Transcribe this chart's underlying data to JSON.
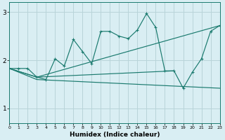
{
  "title": "",
  "xlabel": "Humidex (Indice chaleur)",
  "xlim": [
    0,
    23
  ],
  "ylim": [
    0.7,
    3.2
  ],
  "yticks": [
    1,
    2,
    3
  ],
  "xticks": [
    0,
    1,
    2,
    3,
    4,
    5,
    6,
    7,
    8,
    9,
    10,
    11,
    12,
    13,
    14,
    15,
    16,
    17,
    18,
    19,
    20,
    21,
    22,
    23
  ],
  "bg_color": "#d9eef3",
  "grid_color": "#b8d4d9",
  "line_color": "#1a7a6e",
  "line1_x": [
    0,
    1,
    2,
    3,
    4,
    5,
    6,
    7,
    8,
    9,
    10,
    11,
    12,
    13,
    14,
    15,
    16,
    17,
    18,
    19,
    20,
    21,
    22,
    23
  ],
  "line1_y": [
    1.83,
    1.83,
    1.83,
    1.65,
    1.6,
    2.03,
    1.88,
    2.43,
    2.18,
    1.93,
    2.6,
    2.6,
    2.5,
    2.45,
    2.63,
    2.97,
    2.68,
    1.78,
    1.78,
    1.42,
    1.75,
    2.03,
    2.6,
    2.72
  ],
  "line2_x": [
    0,
    3,
    18
  ],
  "line2_y": [
    1.83,
    1.65,
    1.78
  ],
  "line3_x": [
    0,
    3,
    23
  ],
  "line3_y": [
    1.83,
    1.65,
    2.72
  ],
  "line4_x": [
    0,
    3,
    23
  ],
  "line4_y": [
    1.83,
    1.6,
    1.42
  ]
}
